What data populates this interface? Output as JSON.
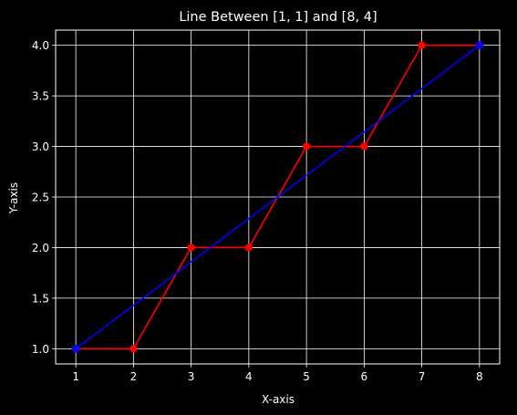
{
  "chart_data": {
    "type": "line",
    "title": "Line Between [1, 1] and [8, 4]",
    "xlabel": "X-axis",
    "ylabel": "Y-axis",
    "xlim": [
      0.65,
      8.35
    ],
    "ylim": [
      0.85,
      4.15
    ],
    "xticks": [
      1,
      2,
      3,
      4,
      5,
      6,
      7,
      8
    ],
    "xtick_labels": [
      "1",
      "2",
      "3",
      "4",
      "5",
      "6",
      "7",
      "8"
    ],
    "yticks": [
      1.0,
      1.5,
      2.0,
      2.5,
      3.0,
      3.5,
      4.0
    ],
    "ytick_labels": [
      "1.0",
      "1.5",
      "2.0",
      "2.5",
      "3.0",
      "3.5",
      "4.0"
    ],
    "grid": true,
    "series": [
      {
        "color": "#ff0000",
        "marker": "circle",
        "x": [
          1,
          2,
          3,
          4,
          5,
          6,
          7,
          8
        ],
        "y": [
          1,
          1,
          2,
          2,
          3,
          3,
          4,
          4
        ]
      },
      {
        "color": "#0000ff",
        "marker": "circle",
        "x": [
          1,
          8
        ],
        "y": [
          1,
          4
        ]
      }
    ]
  }
}
